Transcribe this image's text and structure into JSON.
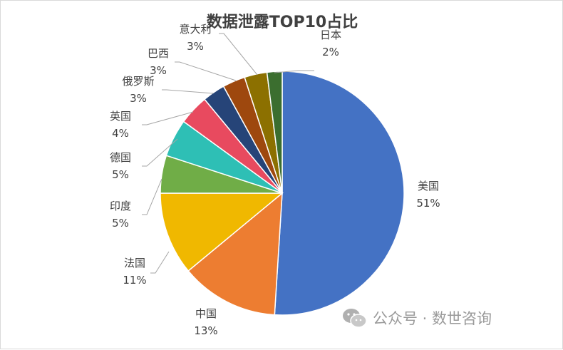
{
  "chart_data": {
    "type": "pie",
    "title": "数据泄露TOP10占比",
    "slices": [
      {
        "name": "美国",
        "value": 51,
        "label": "51%",
        "color": "#4472C4"
      },
      {
        "name": "中国",
        "value": 13,
        "label": "13%",
        "color": "#ED7D31"
      },
      {
        "name": "法国",
        "value": 11,
        "label": "11%",
        "color": "#F0B800"
      },
      {
        "name": "印度",
        "value": 5,
        "label": "5%",
        "color": "#70AD47"
      },
      {
        "name": "德国",
        "value": 5,
        "label": "5%",
        "color": "#2EBFB5"
      },
      {
        "name": "英国",
        "value": 4,
        "label": "4%",
        "color": "#E84A5F"
      },
      {
        "name": "俄罗斯",
        "value": 3,
        "label": "3%",
        "color": "#264478"
      },
      {
        "name": "巴西",
        "value": 3,
        "label": "3%",
        "color": "#9E480E"
      },
      {
        "name": "意大利",
        "value": 3,
        "label": "3%",
        "color": "#8C7000"
      },
      {
        "name": "日本",
        "value": 2,
        "label": "2%",
        "color": "#3B6E2F"
      }
    ],
    "legend": "none",
    "labels": "outside-with-leader-lines"
  },
  "watermark": {
    "text": "公众号 · 数世咨询",
    "icon": "wechat-icon"
  }
}
